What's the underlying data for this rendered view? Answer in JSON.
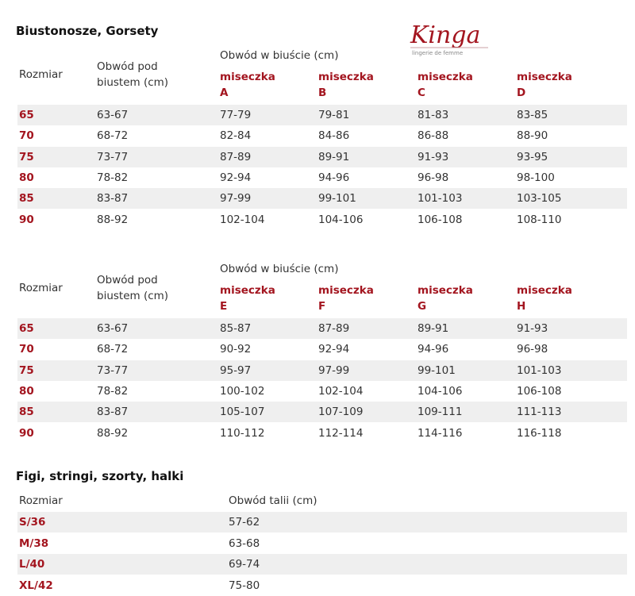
{
  "logo": {
    "text": "Kinga",
    "tagline": "lingerie de femme",
    "color": "#a3151f"
  },
  "bras": {
    "title": "Biustonosze, Gorsety",
    "tables": [
      {
        "size_header": "Rozmiar",
        "under_header": [
          "Obwód pod",
          "biustem (cm)"
        ],
        "bust_header": "Obwód w biuście (cm)",
        "cup_label": "miseczka",
        "cups": [
          "A",
          "B",
          "C",
          "D"
        ],
        "rows": [
          [
            "65",
            "63-67",
            "77-79",
            "79-81",
            "81-83",
            "83-85"
          ],
          [
            "70",
            "68-72",
            "82-84",
            "84-86",
            "86-88",
            "88-90"
          ],
          [
            "75",
            "73-77",
            "87-89",
            "89-91",
            "91-93",
            "93-95"
          ],
          [
            "80",
            "78-82",
            "92-94",
            "94-96",
            "96-98",
            "98-100"
          ],
          [
            "85",
            "83-87",
            "97-99",
            "99-101",
            "101-103",
            "103-105"
          ],
          [
            "90",
            "88-92",
            "102-104",
            "104-106",
            "106-108",
            "108-110"
          ]
        ]
      },
      {
        "size_header": "Rozmiar",
        "under_header": [
          "Obwód pod",
          "biustem (cm)"
        ],
        "bust_header": "Obwód w biuście (cm)",
        "cup_label": "miseczka",
        "cups": [
          "E",
          "F",
          "G",
          "H"
        ],
        "rows": [
          [
            "65",
            "63-67",
            "85-87",
            "87-89",
            "89-91",
            "91-93"
          ],
          [
            "70",
            "68-72",
            "90-92",
            "92-94",
            "94-96",
            "96-98"
          ],
          [
            "75",
            "73-77",
            "95-97",
            "97-99",
            "99-101",
            "101-103"
          ],
          [
            "80",
            "78-82",
            "100-102",
            "102-104",
            "104-106",
            "106-108"
          ],
          [
            "85",
            "83-87",
            "105-107",
            "107-109",
            "109-111",
            "111-113"
          ],
          [
            "90",
            "88-92",
            "110-112",
            "112-114",
            "114-116",
            "116-118"
          ]
        ]
      }
    ]
  },
  "briefs": {
    "title": "Figi, stringi, szorty, halki",
    "headers": [
      "Rozmiar",
      "Obwód talii (cm)"
    ],
    "rows": [
      [
        "S/36",
        "57-62"
      ],
      [
        "M/38",
        "63-68"
      ],
      [
        "L/40",
        "69-74"
      ],
      [
        "XL/42",
        "75-80"
      ]
    ]
  }
}
